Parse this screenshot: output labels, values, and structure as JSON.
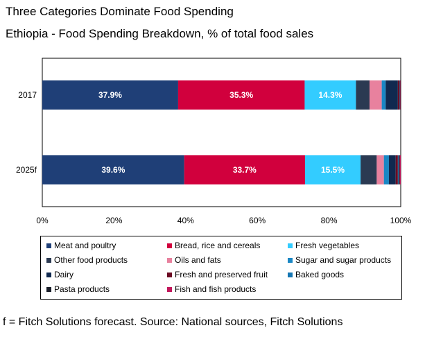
{
  "title": "Three Categories Dominate Food Spending",
  "subtitle": "Ethiopia - Food Spending Breakdown, % of total food sales",
  "note": "f = Fitch Solutions forecast. Source: National sources, Fitch Solutions",
  "chart_data": {
    "type": "bar",
    "orientation": "horizontal",
    "stacked": true,
    "categories": [
      "2017",
      "2025f"
    ],
    "xlim": [
      0,
      100
    ],
    "xticks": [
      "0%",
      "20%",
      "40%",
      "60%",
      "80%",
      "100%"
    ],
    "legend_position": "bottom",
    "series": [
      {
        "name": "Meat and poultry",
        "color": "#1f3f77",
        "values": [
          37.9,
          39.6
        ],
        "labels": [
          "37.9%",
          "39.6%"
        ]
      },
      {
        "name": "Bread, rice and cereals",
        "color": "#d1003d",
        "values": [
          35.3,
          33.7
        ],
        "labels": [
          "35.3%",
          "33.7%"
        ]
      },
      {
        "name": "Fresh vegetables",
        "color": "#33ccff",
        "values": [
          14.3,
          15.5
        ],
        "labels": [
          "14.3%",
          "15.5%"
        ]
      },
      {
        "name": "Other food products",
        "color": "#2b3a52",
        "values": [
          3.8,
          4.5
        ],
        "labels": [
          "",
          ""
        ]
      },
      {
        "name": "Oils and fats",
        "color": "#e8819e",
        "values": [
          3.4,
          2.0
        ],
        "labels": [
          "",
          ""
        ]
      },
      {
        "name": "Sugar and sugar products",
        "color": "#1a87c4",
        "values": [
          1.1,
          1.4
        ],
        "labels": [
          "",
          ""
        ]
      },
      {
        "name": "Dairy",
        "color": "#10294f",
        "values": [
          3.4,
          1.9
        ],
        "labels": [
          "",
          ""
        ]
      },
      {
        "name": "Fresh and preserved fruit",
        "color": "#6b0a22",
        "values": [
          0.5,
          0.6
        ],
        "labels": [
          "",
          ""
        ]
      },
      {
        "name": "Baked goods",
        "color": "#1576b3",
        "values": [
          0.1,
          0.2
        ],
        "labels": [
          "",
          ""
        ]
      },
      {
        "name": "Pasta products",
        "color": "#1a1f2a",
        "values": [
          0.1,
          0.3
        ],
        "labels": [
          "",
          ""
        ]
      },
      {
        "name": "Fish and fish products",
        "color": "#c2185b",
        "values": [
          0.1,
          0.3
        ],
        "labels": [
          "",
          ""
        ]
      }
    ]
  }
}
